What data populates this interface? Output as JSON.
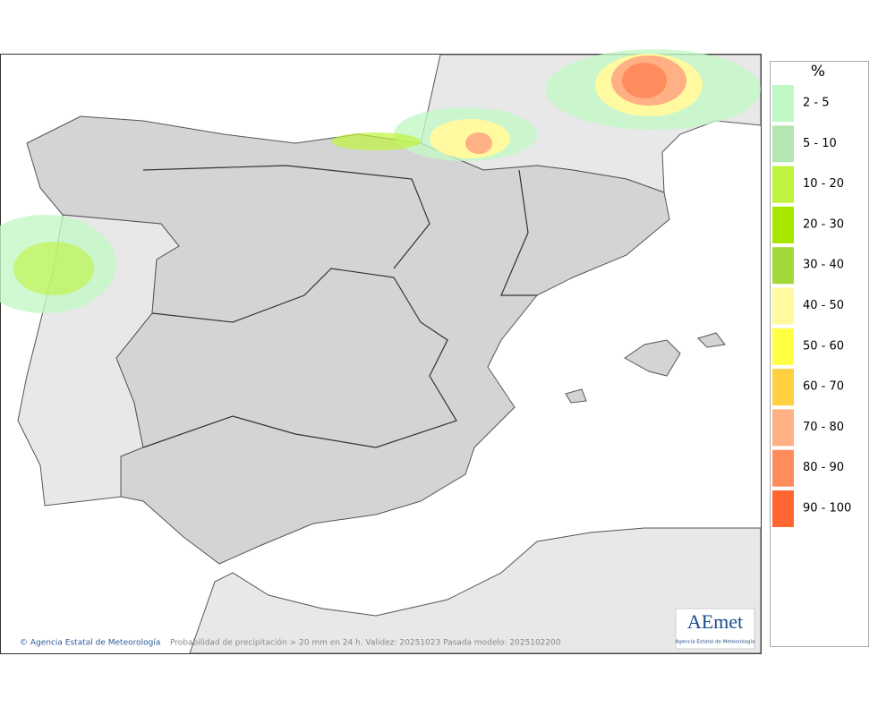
{
  "legend": {
    "title": "%",
    "items": [
      {
        "label": "2 - 5",
        "color": "#c2f7c6"
      },
      {
        "label": "5 - 10",
        "color": "#b4e6b4"
      },
      {
        "label": "10 - 20",
        "color": "#c0f43c"
      },
      {
        "label": "20 - 30",
        "color": "#a8e600"
      },
      {
        "label": "30 - 40",
        "color": "#a2d83a"
      },
      {
        "label": "40 - 50",
        "color": "#fffaa0"
      },
      {
        "label": "50 - 60",
        "color": "#ffff44"
      },
      {
        "label": "60 - 70",
        "color": "#ffd040"
      },
      {
        "label": "70 - 80",
        "color": "#ffb084"
      },
      {
        "label": "80 - 90",
        "color": "#ff8c5c"
      },
      {
        "label": "90 - 100",
        "color": "#ff6632"
      }
    ]
  },
  "footer": {
    "credit": "© Agencia Estatal de Meteorología",
    "caption": "Probabilidad de precipitación > 20 mm en 24 h. Validez: 20251023 Pasada modelo: 2025102200"
  },
  "logo": {
    "name": "AEmet",
    "subtitle": "Agencia Estatal de Meteorología"
  }
}
